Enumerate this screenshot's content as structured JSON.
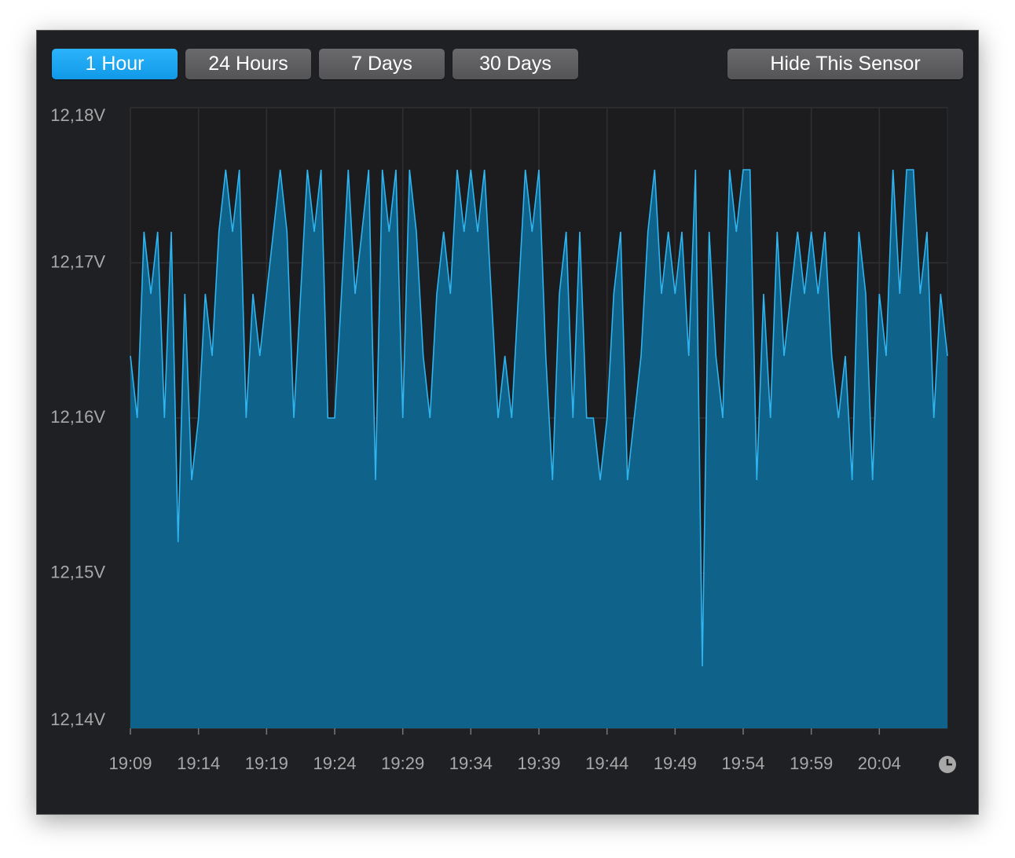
{
  "buttons": [
    "1 Hour",
    "24 Hours",
    "7 Days",
    "30 Days"
  ],
  "hide_button": "Hide This Sensor",
  "chart_data": {
    "type": "area",
    "x": [
      "19:09:00",
      "19:09:30",
      "19:10:00",
      "19:10:30",
      "19:11:00",
      "19:11:30",
      "19:12:00",
      "19:12:30",
      "19:13:00",
      "19:13:30",
      "19:14:00",
      "19:14:30",
      "19:15:00",
      "19:15:30",
      "19:16:00",
      "19:16:30",
      "19:17:00",
      "19:17:30",
      "19:18:00",
      "19:18:30",
      "19:19:00",
      "19:19:30",
      "19:20:00",
      "19:20:30",
      "19:21:00",
      "19:21:30",
      "19:22:00",
      "19:22:30",
      "19:23:00",
      "19:23:30",
      "19:24:00",
      "19:24:30",
      "19:25:00",
      "19:25:30",
      "19:26:00",
      "19:26:30",
      "19:27:00",
      "19:27:30",
      "19:28:00",
      "19:28:30",
      "19:29:00",
      "19:29:30",
      "19:30:00",
      "19:30:30",
      "19:31:00",
      "19:31:30",
      "19:32:00",
      "19:32:30",
      "19:33:00",
      "19:33:30",
      "19:34:00",
      "19:34:30",
      "19:35:00",
      "19:35:30",
      "19:36:00",
      "19:36:30",
      "19:37:00",
      "19:37:30",
      "19:38:00",
      "19:38:30",
      "19:39:00",
      "19:39:30",
      "19:40:00",
      "19:40:30",
      "19:41:00",
      "19:41:30",
      "19:42:00",
      "19:42:30",
      "19:43:00",
      "19:43:30",
      "19:44:00",
      "19:44:30",
      "19:45:00",
      "19:45:30",
      "19:46:00",
      "19:46:30",
      "19:47:00",
      "19:47:30",
      "19:48:00",
      "19:48:30",
      "19:49:00",
      "19:49:30",
      "19:50:00",
      "19:50:30",
      "19:51:00",
      "19:51:30",
      "19:52:00",
      "19:52:30",
      "19:53:00",
      "19:53:30",
      "19:54:00",
      "19:54:30",
      "19:55:00",
      "19:55:30",
      "19:56:00",
      "19:56:30",
      "19:57:00",
      "19:57:30",
      "19:58:00",
      "19:58:30",
      "19:59:00",
      "19:59:30",
      "20:00:00",
      "20:00:30",
      "20:01:00",
      "20:01:30",
      "20:02:00",
      "20:02:30",
      "20:03:00",
      "20:03:30",
      "20:04:00",
      "20:04:30",
      "20:05:00",
      "20:05:30",
      "20:06:00",
      "20:06:30",
      "20:07:00",
      "20:07:30",
      "20:08:00",
      "20:08:30",
      "20:09:00"
    ],
    "series": [
      {
        "color": "#2fb4f0",
        "fill": "#0f6289",
        "values": [
          12.164,
          12.16,
          12.172,
          12.168,
          12.172,
          12.16,
          12.172,
          12.152,
          12.168,
          12.156,
          12.16,
          12.168,
          12.164,
          12.172,
          12.176,
          12.172,
          12.176,
          12.16,
          12.168,
          12.164,
          12.168,
          12.172,
          12.176,
          12.172,
          12.16,
          12.168,
          12.176,
          12.172,
          12.176,
          12.16,
          12.16,
          12.168,
          12.176,
          12.168,
          12.172,
          12.176,
          12.156,
          12.176,
          12.172,
          12.176,
          12.16,
          12.176,
          12.172,
          12.164,
          12.16,
          12.168,
          12.172,
          12.168,
          12.176,
          12.172,
          12.176,
          12.172,
          12.176,
          12.168,
          12.16,
          12.164,
          12.16,
          12.168,
          12.176,
          12.172,
          12.176,
          12.164,
          12.156,
          12.168,
          12.172,
          12.16,
          12.172,
          12.16,
          12.16,
          12.156,
          12.16,
          12.168,
          12.172,
          12.156,
          12.16,
          12.164,
          12.172,
          12.176,
          12.168,
          12.172,
          12.168,
          12.172,
          12.164,
          12.176,
          12.144,
          12.172,
          12.164,
          12.16,
          12.176,
          12.172,
          12.176,
          12.176,
          12.156,
          12.168,
          12.16,
          12.172,
          12.164,
          12.168,
          12.172,
          12.168,
          12.172,
          12.168,
          12.172,
          12.164,
          12.16,
          12.164,
          12.156,
          12.172,
          12.168,
          12.156,
          12.168,
          12.164,
          12.176,
          12.168,
          12.176,
          12.176,
          12.168,
          12.172,
          12.16,
          12.168,
          12.164
        ]
      }
    ],
    "ylim": [
      12.14,
      12.18
    ],
    "yticks": [
      {
        "value": 12.14,
        "label": "12,14V"
      },
      {
        "value": 12.15,
        "label": "12,15V"
      },
      {
        "value": 12.16,
        "label": "12,16V"
      },
      {
        "value": 12.17,
        "label": "12,17V"
      },
      {
        "value": 12.18,
        "label": "12,18V"
      }
    ],
    "xticks": [
      "19:09",
      "19:14",
      "19:19",
      "19:24",
      "19:29",
      "19:34",
      "19:39",
      "19:44",
      "19:49",
      "19:54",
      "19:59",
      "20:04"
    ],
    "grid": true
  }
}
